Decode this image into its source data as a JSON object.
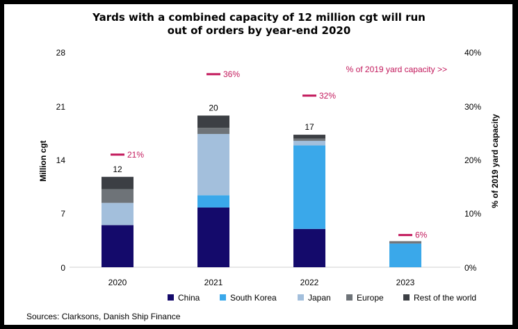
{
  "chart_data": {
    "type": "bar",
    "stacked": true,
    "title_lines": [
      "Yards with a combined capacity of 12 million cgt will run",
      "out of orders by year-end 2020"
    ],
    "ylabel": "Million cgt",
    "y2label": "% of 2019 yard capacity",
    "ylim": [
      0,
      28
    ],
    "y_ticks": [
      "0",
      "7",
      "14",
      "21",
      "28"
    ],
    "y2lim": [
      0,
      40
    ],
    "y2_ticks": [
      "0%",
      "10%",
      "20%",
      "30%",
      "40%"
    ],
    "categories": [
      "2020",
      "2021",
      "2022",
      "2023"
    ],
    "series": [
      {
        "name": "China",
        "color": "#140a6b",
        "values": [
          5.5,
          7.8,
          5.0,
          0.0
        ]
      },
      {
        "name": "South Korea",
        "color": "#3aa8ea",
        "values": [
          0.0,
          1.6,
          10.9,
          3.1
        ]
      },
      {
        "name": "Japan",
        "color": "#a3bfdc",
        "values": [
          2.9,
          8.0,
          0.6,
          0.0
        ]
      },
      {
        "name": "Europe",
        "color": "#6e7378",
        "values": [
          1.8,
          0.8,
          0.3,
          0.3
        ]
      },
      {
        "name": "Rest of the world",
        "color": "#3c3f44",
        "values": [
          1.6,
          1.6,
          0.5,
          0.0
        ]
      }
    ],
    "totals": [
      "12",
      "20",
      "17",
      ""
    ],
    "pct_capacity": [
      21,
      36,
      32,
      6
    ],
    "pct_labels": [
      "21%",
      "36%",
      "32%",
      "6%"
    ],
    "pct_annotation": "% of 2019 yard capacity >>",
    "legend_position": "bottom",
    "grid": false
  },
  "source": "Sources: Clarksons, Danish Ship Finance"
}
